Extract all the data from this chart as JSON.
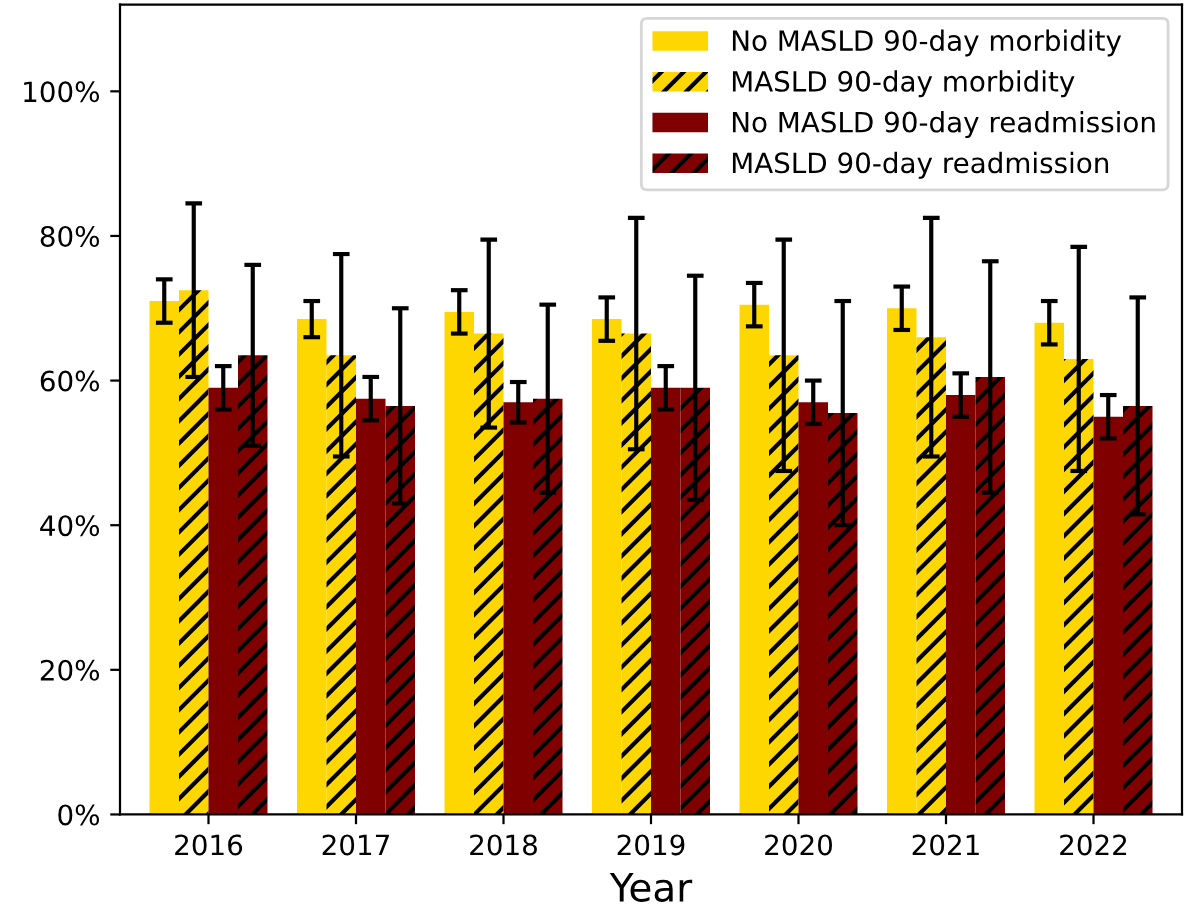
{
  "chart_data": {
    "type": "bar",
    "xlabel": "Year",
    "categories": [
      "2016",
      "2017",
      "2018",
      "2019",
      "2020",
      "2021",
      "2022"
    ],
    "series": [
      {
        "name": "No MASLD 90-day morbidity",
        "color": "#ffd700",
        "values": [
          71,
          68.5,
          69.5,
          68.5,
          70.5,
          70,
          68
        ],
        "errors": [
          3,
          2.5,
          3,
          3,
          3,
          3,
          3
        ]
      },
      {
        "name": "MASLD 90-day morbidity",
        "color": "#ffd700",
        "values": [
          72.5,
          63.5,
          66.5,
          66.5,
          63.5,
          66,
          63
        ],
        "errors": [
          12,
          14,
          13,
          16,
          16,
          16.5,
          15.5
        ]
      },
      {
        "name": "No MASLD 90-day readmission",
        "color": "#800000",
        "values": [
          59,
          57.5,
          57,
          59,
          57,
          58,
          55
        ],
        "errors": [
          3,
          3,
          2.8,
          3,
          3,
          3,
          3
        ]
      },
      {
        "name": "MASLD 90-day readmission",
        "color": "#800000",
        "values": [
          63.5,
          56.5,
          57.5,
          59,
          55.5,
          60.5,
          56.5
        ],
        "errors": [
          12.5,
          13.5,
          13,
          15.5,
          15.5,
          16,
          15
        ]
      }
    ],
    "ylim": [
      0,
      112
    ],
    "yticks": [
      {
        "value": 0,
        "label": "0%"
      },
      {
        "value": 20,
        "label": "20%"
      },
      {
        "value": 40,
        "label": "40%"
      },
      {
        "value": 60,
        "label": "60%"
      },
      {
        "value": 80,
        "label": "80%"
      },
      {
        "value": 100,
        "label": "100%"
      }
    ],
    "legend": "top right",
    "grid": false
  }
}
